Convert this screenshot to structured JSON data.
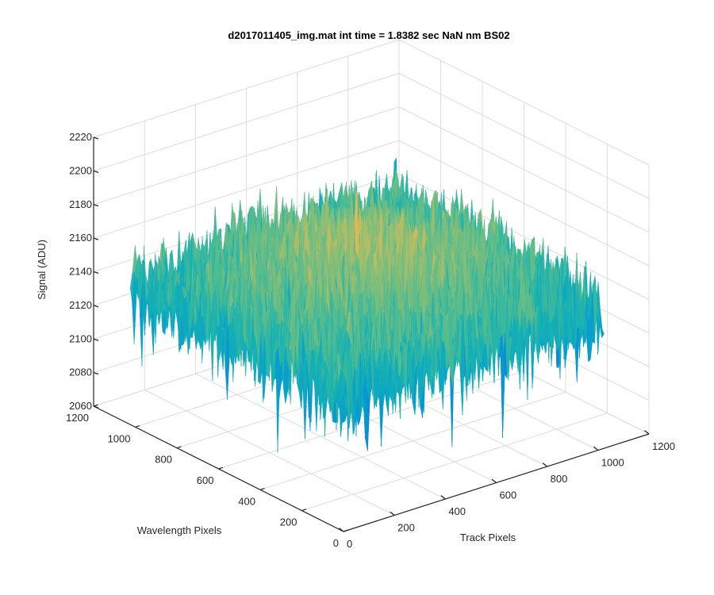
{
  "chart_data": {
    "type": "surface",
    "title": "d2017011405_img.mat int time = 1.8382 sec  NaN nm BS02",
    "xlabel": "Track Pixels",
    "ylabel": "Wavelength Pixels",
    "zlabel": "Signal (ADU)",
    "xlim": [
      0,
      1200
    ],
    "ylim": [
      0,
      1200
    ],
    "zlim": [
      2060,
      2220
    ],
    "xticks": [
      "0",
      "200",
      "400",
      "600",
      "800",
      "1000",
      "1200"
    ],
    "yticks": [
      "0",
      "200",
      "400",
      "600",
      "800",
      "1000",
      "1200"
    ],
    "zticks": [
      "2060",
      "2080",
      "2100",
      "2120",
      "2140",
      "2160",
      "2180",
      "2200",
      "2220"
    ],
    "grid": true,
    "colormap": "parula",
    "surface": {
      "x_extent": [
        0,
        1024
      ],
      "y_extent": [
        0,
        1024
      ],
      "mean_signal": 2145,
      "edge_signal": 2138,
      "center_signal": 2165,
      "noise_amplitude": 18,
      "min_signal": 2080,
      "max_signal": 2210
    }
  }
}
